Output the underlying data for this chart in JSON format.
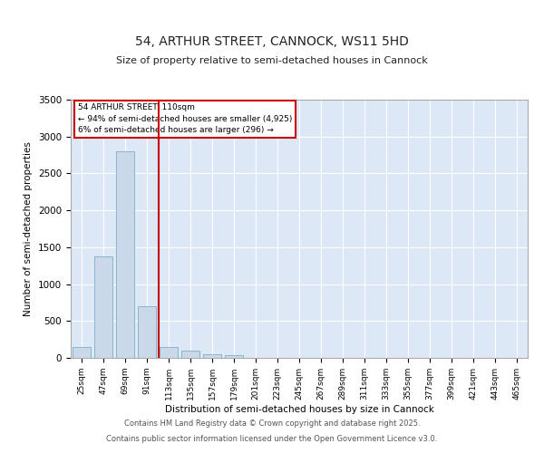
{
  "title1": "54, ARTHUR STREET, CANNOCK, WS11 5HD",
  "title2": "Size of property relative to semi-detached houses in Cannock",
  "xlabel": "Distribution of semi-detached houses by size in Cannock",
  "ylabel": "Number of semi-detached properties",
  "categories": [
    "25sqm",
    "47sqm",
    "69sqm",
    "91sqm",
    "113sqm",
    "135sqm",
    "157sqm",
    "179sqm",
    "201sqm",
    "223sqm",
    "245sqm",
    "267sqm",
    "289sqm",
    "311sqm",
    "333sqm",
    "355sqm",
    "377sqm",
    "399sqm",
    "421sqm",
    "443sqm",
    "465sqm"
  ],
  "values": [
    150,
    1380,
    2800,
    700,
    150,
    95,
    50,
    40,
    0,
    0,
    0,
    0,
    0,
    0,
    0,
    0,
    0,
    0,
    0,
    0,
    0
  ],
  "bar_color": "#c9d9ea",
  "bar_edge_color": "#8ab4cc",
  "vline_color": "#cc0000",
  "vline_index": 3.55,
  "annotation_title": "54 ARTHUR STREET: 110sqm",
  "annotation_line1": "← 94% of semi-detached houses are smaller (4,925)",
  "annotation_line2": "6% of semi-detached houses are larger (296) →",
  "annotation_box_edge_color": "#cc0000",
  "ylim": [
    0,
    3500
  ],
  "yticks": [
    0,
    500,
    1000,
    1500,
    2000,
    2500,
    3000,
    3500
  ],
  "fig_bg_color": "#ffffff",
  "plot_bg_color": "#dce8f5",
  "footer1": "Contains HM Land Registry data © Crown copyright and database right 2025.",
  "footer2": "Contains public sector information licensed under the Open Government Licence v3.0."
}
